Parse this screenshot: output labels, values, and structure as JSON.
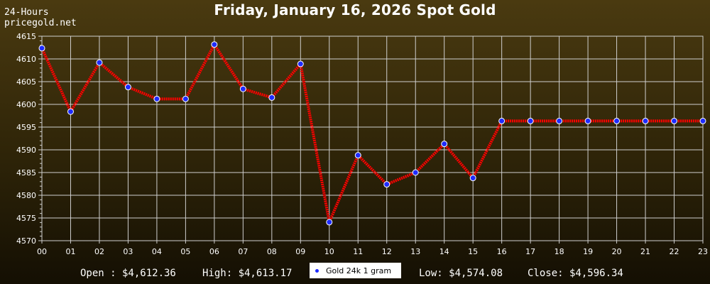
{
  "header": {
    "title": "Friday, January 16, 2026 Spot Gold",
    "period": "24-Hours",
    "site": "pricegold.net"
  },
  "summary": {
    "open": "Open : $4,612.36",
    "high": "High: $4,613.17",
    "low": "Low: $4,574.08",
    "close": "Close: $4,596.34"
  },
  "legend": {
    "label": "Gold 24k 1 gram"
  },
  "colors": {
    "line": "#ff0000",
    "marker": "#1e2bff",
    "grid": "#cfcfcf"
  },
  "chart_data": {
    "type": "line",
    "title": "Friday, January 16, 2026 Spot Gold",
    "xlabel": "",
    "ylabel": "",
    "categories": [
      "00",
      "01",
      "02",
      "03",
      "04",
      "05",
      "06",
      "07",
      "08",
      "09",
      "10",
      "11",
      "12",
      "13",
      "14",
      "15",
      "16",
      "17",
      "18",
      "19",
      "20",
      "21",
      "22",
      "23"
    ],
    "series": [
      {
        "name": "Gold 24k 1 gram",
        "values": [
          4612.36,
          4598.4,
          4609.2,
          4603.8,
          4601.2,
          4601.2,
          4613.17,
          4603.4,
          4601.5,
          4608.9,
          4574.08,
          4588.8,
          4582.4,
          4585.0,
          4591.3,
          4583.8,
          4596.34,
          4596.34,
          4596.34,
          4596.34,
          4596.34,
          4596.34,
          4596.34,
          4596.34
        ]
      }
    ],
    "ylim": [
      4570,
      4615
    ],
    "yticks": [
      4570,
      4575,
      4580,
      4585,
      4590,
      4595,
      4600,
      4605,
      4610,
      4615
    ],
    "grid": true,
    "legend_position": "bottom-center"
  }
}
